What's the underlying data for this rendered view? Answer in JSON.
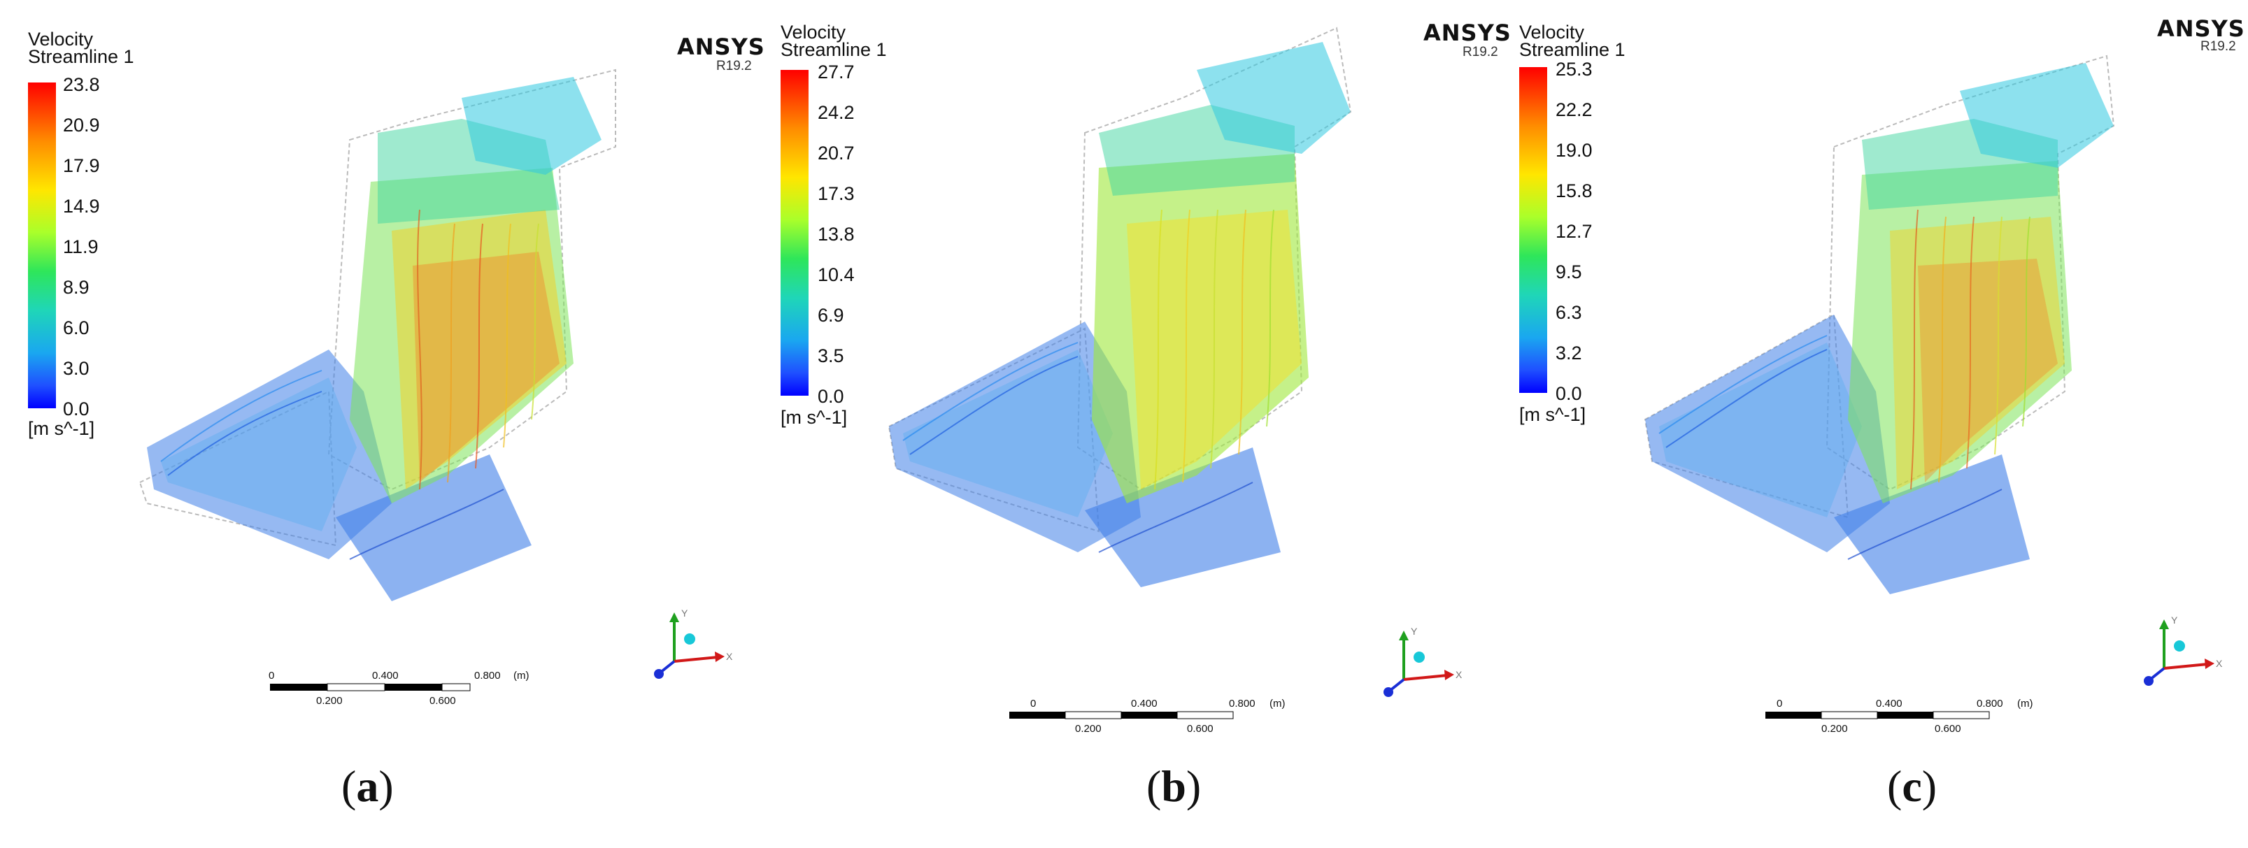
{
  "panels": [
    {
      "legend_title_1": "Velocity",
      "legend_title_2": "Streamline 1",
      "ticks": [
        "23.8",
        "20.9",
        "17.9",
        "14.9",
        "11.9",
        "8.9",
        "6.0",
        "3.0",
        "0.0"
      ],
      "units": "[m s^-1]",
      "brand": "ANSYS",
      "version": "R19.2",
      "scale_top": [
        "0",
        "0.400",
        "0.800"
      ],
      "scale_unit": "(m)",
      "scale_bottom": [
        "0.200",
        "0.600"
      ],
      "caption_open": "(",
      "caption_letter": "a",
      "caption_close": ")"
    },
    {
      "legend_title_1": "Velocity",
      "legend_title_2": "Streamline 1",
      "ticks": [
        "27.7",
        "24.2",
        "20.7",
        "17.3",
        "13.8",
        "10.4",
        "6.9",
        "3.5",
        "0.0"
      ],
      "units": "[m s^-1]",
      "brand": "ANSYS",
      "version": "R19.2",
      "scale_top": [
        "0",
        "0.400",
        "0.800"
      ],
      "scale_unit": "(m)",
      "scale_bottom": [
        "0.200",
        "0.600"
      ],
      "caption_open": "(",
      "caption_letter": "b",
      "caption_close": ")"
    },
    {
      "legend_title_1": "Velocity",
      "legend_title_2": "Streamline 1",
      "ticks": [
        "25.3",
        "22.2",
        "19.0",
        "15.8",
        "12.7",
        "9.5",
        "6.3",
        "3.2",
        "0.0"
      ],
      "units": "[m s^-1]",
      "brand": "ANSYS",
      "version": "R19.2",
      "scale_top": [
        "0",
        "0.400",
        "0.800"
      ],
      "scale_unit": "(m)",
      "scale_bottom": [
        "0.200",
        "0.600"
      ],
      "caption_open": "(",
      "caption_letter": "c",
      "caption_close": ")"
    }
  ],
  "axis_letters": {
    "y": "Y",
    "x": "X"
  },
  "colors": {
    "axis_y": "#1fa01f",
    "axis_x": "#d11818",
    "axis_z": "#1a2fd6",
    "axis_dot": "#18c8d8"
  }
}
